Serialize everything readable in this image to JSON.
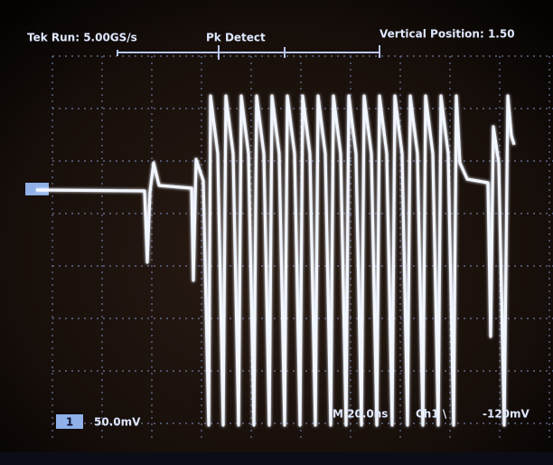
{
  "header": {
    "acquisition": "Tek Run: 5.00GS/s",
    "mode": "Pk Detect",
    "position": "Vertical Position: 1.50"
  },
  "footer": {
    "channel": "1",
    "scale": "50.0mV",
    "timebase": "M 20.0ns",
    "trigger": "Ch1 \\",
    "level": "-120mV"
  }
}
